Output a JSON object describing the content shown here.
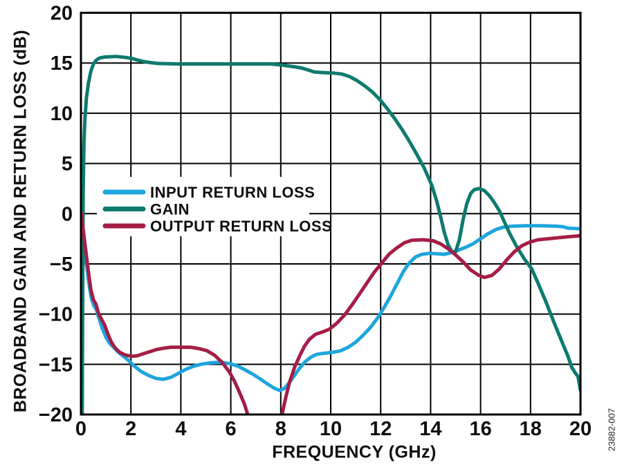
{
  "figure": {
    "watermark": "23882-007"
  },
  "chart_data": {
    "type": "line",
    "title": "",
    "xlabel": "FREQUENCY (GHz)",
    "ylabel": "BROADBAND GAIN AND RETURN LOSS (dB)",
    "xlim": [
      0,
      20
    ],
    "ylim": [
      -20,
      20
    ],
    "xticks": [
      0,
      2,
      4,
      6,
      8,
      10,
      12,
      14,
      16,
      18,
      20
    ],
    "yticks": [
      20,
      15,
      10,
      5,
      0,
      -5,
      -10,
      -15,
      -20
    ],
    "grid": true,
    "legend_position": "inside-upper-left",
    "frame_color": "#000000",
    "grid_color": "#000000",
    "text_color": "#0f0f0f",
    "series": [
      {
        "name": "INPUT RETURN LOSS",
        "color": "#1EA5DC",
        "points": [
          [
            0.02,
            0.1
          ],
          [
            0.1,
            -2
          ],
          [
            0.2,
            -4.5
          ],
          [
            0.3,
            -6.6
          ],
          [
            0.4,
            -8.2
          ],
          [
            0.5,
            -9.1
          ],
          [
            0.62,
            -9.6
          ],
          [
            0.72,
            -10.4
          ],
          [
            0.85,
            -11.4
          ],
          [
            1,
            -12.3
          ],
          [
            1.15,
            -12.9
          ],
          [
            1.3,
            -13.3
          ],
          [
            1.5,
            -13.8
          ],
          [
            1.7,
            -14.2
          ],
          [
            1.9,
            -14.6
          ],
          [
            2.1,
            -15.1
          ],
          [
            2.4,
            -15.7
          ],
          [
            2.7,
            -16.1
          ],
          [
            3,
            -16.4
          ],
          [
            3.3,
            -16.5
          ],
          [
            3.6,
            -16.3
          ],
          [
            3.9,
            -15.9
          ],
          [
            4.2,
            -15.5
          ],
          [
            4.5,
            -15.2
          ],
          [
            4.8,
            -15
          ],
          [
            5.2,
            -14.85
          ],
          [
            5.6,
            -14.8
          ],
          [
            6,
            -14.95
          ],
          [
            6.3,
            -15.2
          ],
          [
            6.6,
            -15.6
          ],
          [
            6.9,
            -16
          ],
          [
            7.2,
            -16.5
          ],
          [
            7.5,
            -17
          ],
          [
            7.75,
            -17.4
          ],
          [
            7.95,
            -17.6
          ],
          [
            8.15,
            -17.4
          ],
          [
            8.35,
            -16.8
          ],
          [
            8.55,
            -16.1
          ],
          [
            8.75,
            -15.4
          ],
          [
            8.95,
            -14.8
          ],
          [
            9.2,
            -14.3
          ],
          [
            9.45,
            -14
          ],
          [
            9.75,
            -13.9
          ],
          [
            10.1,
            -13.8
          ],
          [
            10.4,
            -13.65
          ],
          [
            10.7,
            -13.3
          ],
          [
            11,
            -12.8
          ],
          [
            11.3,
            -12.1
          ],
          [
            11.6,
            -11.3
          ],
          [
            11.9,
            -10.3
          ],
          [
            12.15,
            -9.3
          ],
          [
            12.4,
            -8.2
          ],
          [
            12.65,
            -7
          ],
          [
            12.9,
            -5.8
          ],
          [
            13.15,
            -4.9
          ],
          [
            13.4,
            -4.3
          ],
          [
            13.65,
            -4.05
          ],
          [
            13.95,
            -3.95
          ],
          [
            14.3,
            -4
          ],
          [
            14.55,
            -4.05
          ],
          [
            14.8,
            -3.9
          ],
          [
            15.1,
            -3.65
          ],
          [
            15.4,
            -3.35
          ],
          [
            15.7,
            -3
          ],
          [
            16,
            -2.5
          ],
          [
            16.3,
            -2
          ],
          [
            16.6,
            -1.6
          ],
          [
            16.9,
            -1.35
          ],
          [
            17.3,
            -1.25
          ],
          [
            17.8,
            -1.2
          ],
          [
            18.4,
            -1.2
          ],
          [
            19,
            -1.25
          ],
          [
            19.3,
            -1.3
          ],
          [
            19.5,
            -1.45
          ],
          [
            20,
            -1.5
          ]
        ]
      },
      {
        "name": "GAIN",
        "color": "#0E7A6F",
        "points": [
          [
            0.05,
            -20.5
          ],
          [
            0.07,
            -8
          ],
          [
            0.09,
            2
          ],
          [
            0.12,
            7
          ],
          [
            0.16,
            9.5
          ],
          [
            0.22,
            11.5
          ],
          [
            0.3,
            13
          ],
          [
            0.4,
            14.2
          ],
          [
            0.5,
            14.9
          ],
          [
            0.62,
            15.3
          ],
          [
            0.75,
            15.5
          ],
          [
            0.95,
            15.6
          ],
          [
            1.4,
            15.65
          ],
          [
            1.8,
            15.55
          ],
          [
            2.05,
            15.45
          ],
          [
            2.25,
            15.3
          ],
          [
            2.5,
            15.15
          ],
          [
            2.75,
            15.05
          ],
          [
            3.1,
            14.95
          ],
          [
            4,
            14.9
          ],
          [
            5,
            14.9
          ],
          [
            6,
            14.9
          ],
          [
            7,
            14.9
          ],
          [
            7.6,
            14.9
          ],
          [
            8.05,
            14.8
          ],
          [
            8.3,
            14.7
          ],
          [
            8.6,
            14.6
          ],
          [
            8.85,
            14.5
          ],
          [
            9.1,
            14.3
          ],
          [
            9.35,
            14.1
          ],
          [
            9.65,
            14.05
          ],
          [
            10.1,
            14
          ],
          [
            10.45,
            13.9
          ],
          [
            10.75,
            13.65
          ],
          [
            11.05,
            13.25
          ],
          [
            11.35,
            12.75
          ],
          [
            11.65,
            12.15
          ],
          [
            11.95,
            11.4
          ],
          [
            12.25,
            10.5
          ],
          [
            12.55,
            9.5
          ],
          [
            12.85,
            8.4
          ],
          [
            13.15,
            7.2
          ],
          [
            13.45,
            5.9
          ],
          [
            13.75,
            4.5
          ],
          [
            14.05,
            2.8
          ],
          [
            14.25,
            1.2
          ],
          [
            14.4,
            -0.3
          ],
          [
            14.55,
            -1.9
          ],
          [
            14.7,
            -3.1
          ],
          [
            14.85,
            -3.8
          ],
          [
            15,
            -3.8
          ],
          [
            15.15,
            -2.6
          ],
          [
            15.3,
            -0.6
          ],
          [
            15.45,
            1
          ],
          [
            15.6,
            2
          ],
          [
            15.75,
            2.4
          ],
          [
            15.95,
            2.5
          ],
          [
            16.15,
            2.3
          ],
          [
            16.35,
            1.8
          ],
          [
            16.55,
            1.1
          ],
          [
            16.75,
            0.3
          ],
          [
            16.95,
            -0.8
          ],
          [
            17.15,
            -1.9
          ],
          [
            17.45,
            -3.3
          ],
          [
            17.75,
            -4.5
          ],
          [
            18.05,
            -5.5
          ],
          [
            18.35,
            -7.2
          ],
          [
            18.65,
            -9
          ],
          [
            18.95,
            -10.9
          ],
          [
            19.25,
            -12.7
          ],
          [
            19.5,
            -14.2
          ],
          [
            19.65,
            -15.3
          ],
          [
            19.8,
            -15.9
          ],
          [
            19.9,
            -16.2
          ],
          [
            20,
            -17.6
          ]
        ]
      },
      {
        "name": "OUTPUT RETURN LOSS",
        "color": "#A41E45",
        "points": [
          [
            0.02,
            0
          ],
          [
            0.1,
            -1.8
          ],
          [
            0.2,
            -3.8
          ],
          [
            0.3,
            -5.8
          ],
          [
            0.4,
            -7.6
          ],
          [
            0.5,
            -8.6
          ],
          [
            0.6,
            -9
          ],
          [
            0.7,
            -9.9
          ],
          [
            0.82,
            -10.5
          ],
          [
            0.95,
            -11.1
          ],
          [
            1.08,
            -12
          ],
          [
            1.22,
            -12.8
          ],
          [
            1.38,
            -13.4
          ],
          [
            1.55,
            -13.8
          ],
          [
            1.75,
            -14.05
          ],
          [
            2,
            -14.2
          ],
          [
            2.25,
            -14.15
          ],
          [
            2.5,
            -13.95
          ],
          [
            2.75,
            -13.75
          ],
          [
            3,
            -13.55
          ],
          [
            3.3,
            -13.4
          ],
          [
            3.6,
            -13.3
          ],
          [
            4,
            -13.3
          ],
          [
            4.4,
            -13.3
          ],
          [
            4.75,
            -13.45
          ],
          [
            5.05,
            -13.65
          ],
          [
            5.35,
            -14.1
          ],
          [
            5.65,
            -14.8
          ],
          [
            5.95,
            -15.8
          ],
          [
            6.15,
            -16.7
          ],
          [
            6.35,
            -17.8
          ],
          [
            6.55,
            -19
          ],
          [
            6.75,
            -20.6
          ],
          [
            7.1,
            -22.3
          ],
          [
            7.5,
            -23
          ],
          [
            7.85,
            -21.6
          ],
          [
            8.05,
            -20
          ],
          [
            8.2,
            -18.3
          ],
          [
            8.35,
            -16.8
          ],
          [
            8.55,
            -15.3
          ],
          [
            8.75,
            -14.2
          ],
          [
            8.95,
            -13.2
          ],
          [
            9.15,
            -12.5
          ],
          [
            9.4,
            -12
          ],
          [
            9.65,
            -11.8
          ],
          [
            9.95,
            -11.5
          ],
          [
            10.25,
            -10.9
          ],
          [
            10.55,
            -10.1
          ],
          [
            10.85,
            -9.1
          ],
          [
            11.15,
            -8
          ],
          [
            11.45,
            -6.9
          ],
          [
            11.75,
            -5.8
          ],
          [
            12.05,
            -4.9
          ],
          [
            12.35,
            -4
          ],
          [
            12.65,
            -3.4
          ],
          [
            12.95,
            -2.9
          ],
          [
            13.25,
            -2.65
          ],
          [
            13.7,
            -2.6
          ],
          [
            14.1,
            -2.7
          ],
          [
            14.4,
            -3
          ],
          [
            14.7,
            -3.5
          ],
          [
            15,
            -4.1
          ],
          [
            15.3,
            -4.8
          ],
          [
            15.6,
            -5.6
          ],
          [
            15.9,
            -6.1
          ],
          [
            16.15,
            -6.35
          ],
          [
            16.45,
            -6.15
          ],
          [
            16.75,
            -5.5
          ],
          [
            17.05,
            -4.6
          ],
          [
            17.35,
            -3.8
          ],
          [
            17.65,
            -3.2
          ],
          [
            17.95,
            -2.85
          ],
          [
            18.3,
            -2.6
          ],
          [
            18.7,
            -2.5
          ],
          [
            19.1,
            -2.4
          ],
          [
            19.5,
            -2.3
          ],
          [
            20,
            -2.2
          ]
        ]
      }
    ]
  }
}
